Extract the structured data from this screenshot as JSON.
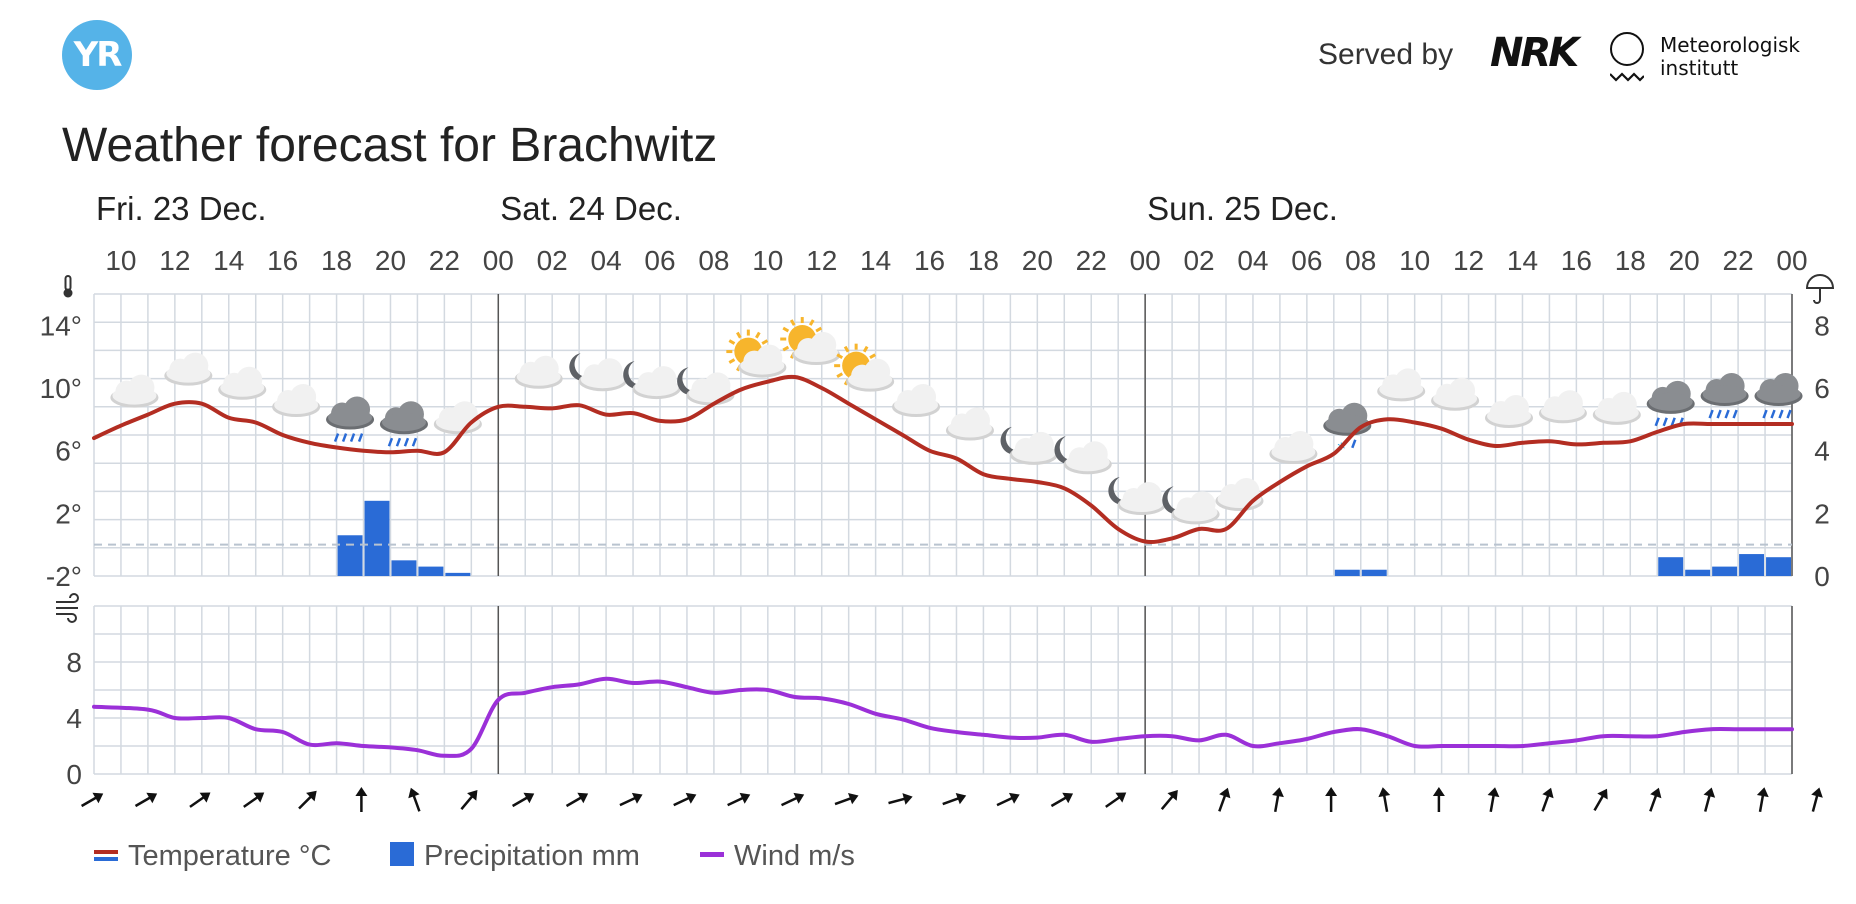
{
  "header": {
    "logo_text": "YR",
    "served_by": "Served by",
    "nrk_logo": "NRK",
    "met_line1": "Meteorologisk",
    "met_line2": "institutt"
  },
  "title": "Weather forecast for Brachwitz",
  "chart_data": {
    "type": "line",
    "days": [
      {
        "label": "Fri. 23 Dec.",
        "start_hour": 9
      },
      {
        "label": "Sat. 24 Dec.",
        "start_hour": 24
      },
      {
        "label": "Sun. 25 Dec.",
        "start_hour": 48
      }
    ],
    "hour_ticks": [
      "10",
      "12",
      "14",
      "16",
      "18",
      "20",
      "22",
      "00",
      "02",
      "04",
      "06",
      "08",
      "10",
      "12",
      "14",
      "16",
      "18",
      "20",
      "22",
      "00",
      "02",
      "04",
      "06",
      "08",
      "10",
      "12",
      "14",
      "16",
      "18",
      "20",
      "22",
      "00"
    ],
    "temperature_axis": {
      "ticks": [
        "14°",
        "10°",
        "6°",
        "2°",
        "-2°"
      ],
      "values": [
        14,
        10,
        6,
        2,
        -2
      ],
      "range": [
        -2,
        16
      ]
    },
    "precip_axis": {
      "ticks": [
        "8",
        "6",
        "4",
        "2",
        "0"
      ],
      "values": [
        8,
        6,
        4,
        2,
        0
      ],
      "range": [
        0,
        9
      ]
    },
    "wind_axis": {
      "ticks": [
        "8",
        "4",
        "0"
      ],
      "values": [
        8,
        4,
        0
      ],
      "range": [
        0,
        12
      ]
    },
    "temperature": {
      "name": "Temperature °C",
      "x_hours": [
        9,
        10,
        11,
        12,
        13,
        14,
        15,
        16,
        17,
        18,
        19,
        20,
        21,
        22,
        23,
        24,
        25,
        26,
        27,
        28,
        29,
        30,
        31,
        32,
        33,
        34,
        35,
        36,
        37,
        38,
        39,
        40,
        41,
        42,
        43,
        44,
        45,
        46,
        47,
        48,
        49,
        50,
        51,
        52,
        53,
        54,
        55,
        56,
        57,
        58,
        59,
        60,
        61,
        62,
        63,
        64,
        65,
        66,
        67,
        68,
        69,
        70,
        71,
        72
      ],
      "values": [
        6.8,
        7.6,
        8.3,
        9.0,
        9.0,
        8.1,
        7.8,
        7.0,
        6.5,
        6.2,
        6.0,
        5.9,
        6.0,
        5.9,
        7.8,
        8.8,
        8.8,
        8.7,
        8.9,
        8.3,
        8.4,
        7.9,
        8.0,
        9.0,
        9.9,
        10.4,
        10.7,
        10.0,
        9.0,
        8.0,
        7.0,
        6.0,
        5.5,
        4.5,
        4.2,
        4.0,
        3.6,
        2.5,
        1.0,
        0.2,
        0.4,
        1.0,
        1.0,
        2.8,
        4.0,
        5.0,
        5.8,
        7.5,
        8.0,
        7.8,
        7.4,
        6.7,
        6.3,
        6.5,
        6.6,
        6.4,
        6.5,
        6.6,
        7.2,
        7.7,
        7.7,
        7.7,
        7.7,
        7.7
      ],
      "color": "#b32d22"
    },
    "precipitation": {
      "name": "Precipitation mm",
      "bars": [
        {
          "hour": 18,
          "value": 1.3
        },
        {
          "hour": 19,
          "value": 2.4
        },
        {
          "hour": 20,
          "value": 0.5
        },
        {
          "hour": 21,
          "value": 0.3
        },
        {
          "hour": 22,
          "value": 0.1
        },
        {
          "hour": 55,
          "value": 0.2
        },
        {
          "hour": 56,
          "value": 0.2
        },
        {
          "hour": 67,
          "value": 0.6
        },
        {
          "hour": 68,
          "value": 0.2
        },
        {
          "hour": 69,
          "value": 0.3
        },
        {
          "hour": 70,
          "value": 0.7
        },
        {
          "hour": 71,
          "value": 0.6
        }
      ],
      "color": "#2a6bd6"
    },
    "wind": {
      "name": "Wind m/s",
      "x_hours": [
        9,
        11,
        12,
        13,
        14,
        15,
        16,
        17,
        18,
        19,
        20,
        21,
        22,
        23,
        24,
        25,
        26,
        27,
        28,
        29,
        30,
        31,
        32,
        33,
        34,
        35,
        36,
        37,
        38,
        39,
        40,
        41,
        42,
        43,
        44,
        45,
        46,
        47,
        48,
        49,
        50,
        51,
        52,
        53,
        54,
        55,
        56,
        57,
        58,
        59,
        60,
        61,
        62,
        63,
        64,
        65,
        66,
        67,
        68,
        69,
        70,
        71,
        72
      ],
      "values": [
        4.8,
        4.6,
        4.0,
        4.0,
        4.0,
        3.2,
        3.0,
        2.1,
        2.2,
        2.0,
        1.9,
        1.7,
        1.3,
        1.8,
        5.3,
        5.8,
        6.2,
        6.4,
        6.8,
        6.5,
        6.6,
        6.2,
        5.8,
        6.0,
        6.0,
        5.5,
        5.4,
        5.0,
        4.3,
        3.9,
        3.3,
        3.0,
        2.8,
        2.6,
        2.6,
        2.8,
        2.3,
        2.5,
        2.7,
        2.7,
        2.4,
        2.8,
        2.0,
        2.2,
        2.5,
        3.0,
        3.2,
        2.7,
        2.0,
        2.0,
        2.0,
        2.0,
        2.0,
        2.2,
        2.4,
        2.7,
        2.7,
        2.7,
        3.0,
        3.2,
        3.2,
        3.2,
        3.2
      ],
      "color": "#9b30d8"
    },
    "wind_arrow_angles_deg": [
      60,
      60,
      55,
      55,
      45,
      0,
      -20,
      40,
      60,
      60,
      65,
      65,
      65,
      65,
      70,
      75,
      70,
      65,
      60,
      55,
      40,
      20,
      10,
      0,
      -10,
      0,
      10,
      20,
      30,
      20,
      15,
      10,
      15
    ],
    "weather_symbols": [
      {
        "hour": 10,
        "icon": "cloud-icon"
      },
      {
        "hour": 12,
        "icon": "cloud-icon"
      },
      {
        "hour": 14,
        "icon": "cloud-icon"
      },
      {
        "hour": 16,
        "icon": "cloud-icon"
      },
      {
        "hour": 18,
        "icon": "rain-cloud-icon"
      },
      {
        "hour": 20,
        "icon": "rain-cloud-icon"
      },
      {
        "hour": 22,
        "icon": "cloud-icon"
      },
      {
        "hour": 25,
        "icon": "cloud-icon"
      },
      {
        "hour": 27,
        "icon": "moon-cloud-icon"
      },
      {
        "hour": 29,
        "icon": "moon-cloud-icon"
      },
      {
        "hour": 31,
        "icon": "moon-cloud-icon"
      },
      {
        "hour": 33,
        "icon": "sun-cloud-icon"
      },
      {
        "hour": 35,
        "icon": "sun-cloud-icon"
      },
      {
        "hour": 37,
        "icon": "sun-cloud-icon"
      },
      {
        "hour": 39,
        "icon": "cloud-icon"
      },
      {
        "hour": 41,
        "icon": "cloud-icon"
      },
      {
        "hour": 43,
        "icon": "moon-cloud-icon"
      },
      {
        "hour": 45,
        "icon": "moon-cloud-icon"
      },
      {
        "hour": 47,
        "icon": "moon-cloud-icon"
      },
      {
        "hour": 49,
        "icon": "moon-cloud-icon"
      },
      {
        "hour": 51,
        "icon": "cloud-icon"
      },
      {
        "hour": 53,
        "icon": "cloud-icon"
      },
      {
        "hour": 55,
        "icon": "snow-cloud-icon"
      },
      {
        "hour": 57,
        "icon": "cloud-icon"
      },
      {
        "hour": 59,
        "icon": "cloud-icon"
      },
      {
        "hour": 61,
        "icon": "cloud-icon"
      },
      {
        "hour": 63,
        "icon": "cloud-icon"
      },
      {
        "hour": 65,
        "icon": "cloud-icon"
      },
      {
        "hour": 67,
        "icon": "rain-cloud-icon"
      },
      {
        "hour": 69,
        "icon": "rain-cloud-icon"
      },
      {
        "hour": 71,
        "icon": "rain-cloud-icon"
      }
    ],
    "grid": true,
    "legend": {
      "placement": "bottom-left",
      "items": [
        "Temperature °C",
        "Precipitation mm",
        "Wind m/s"
      ]
    }
  }
}
